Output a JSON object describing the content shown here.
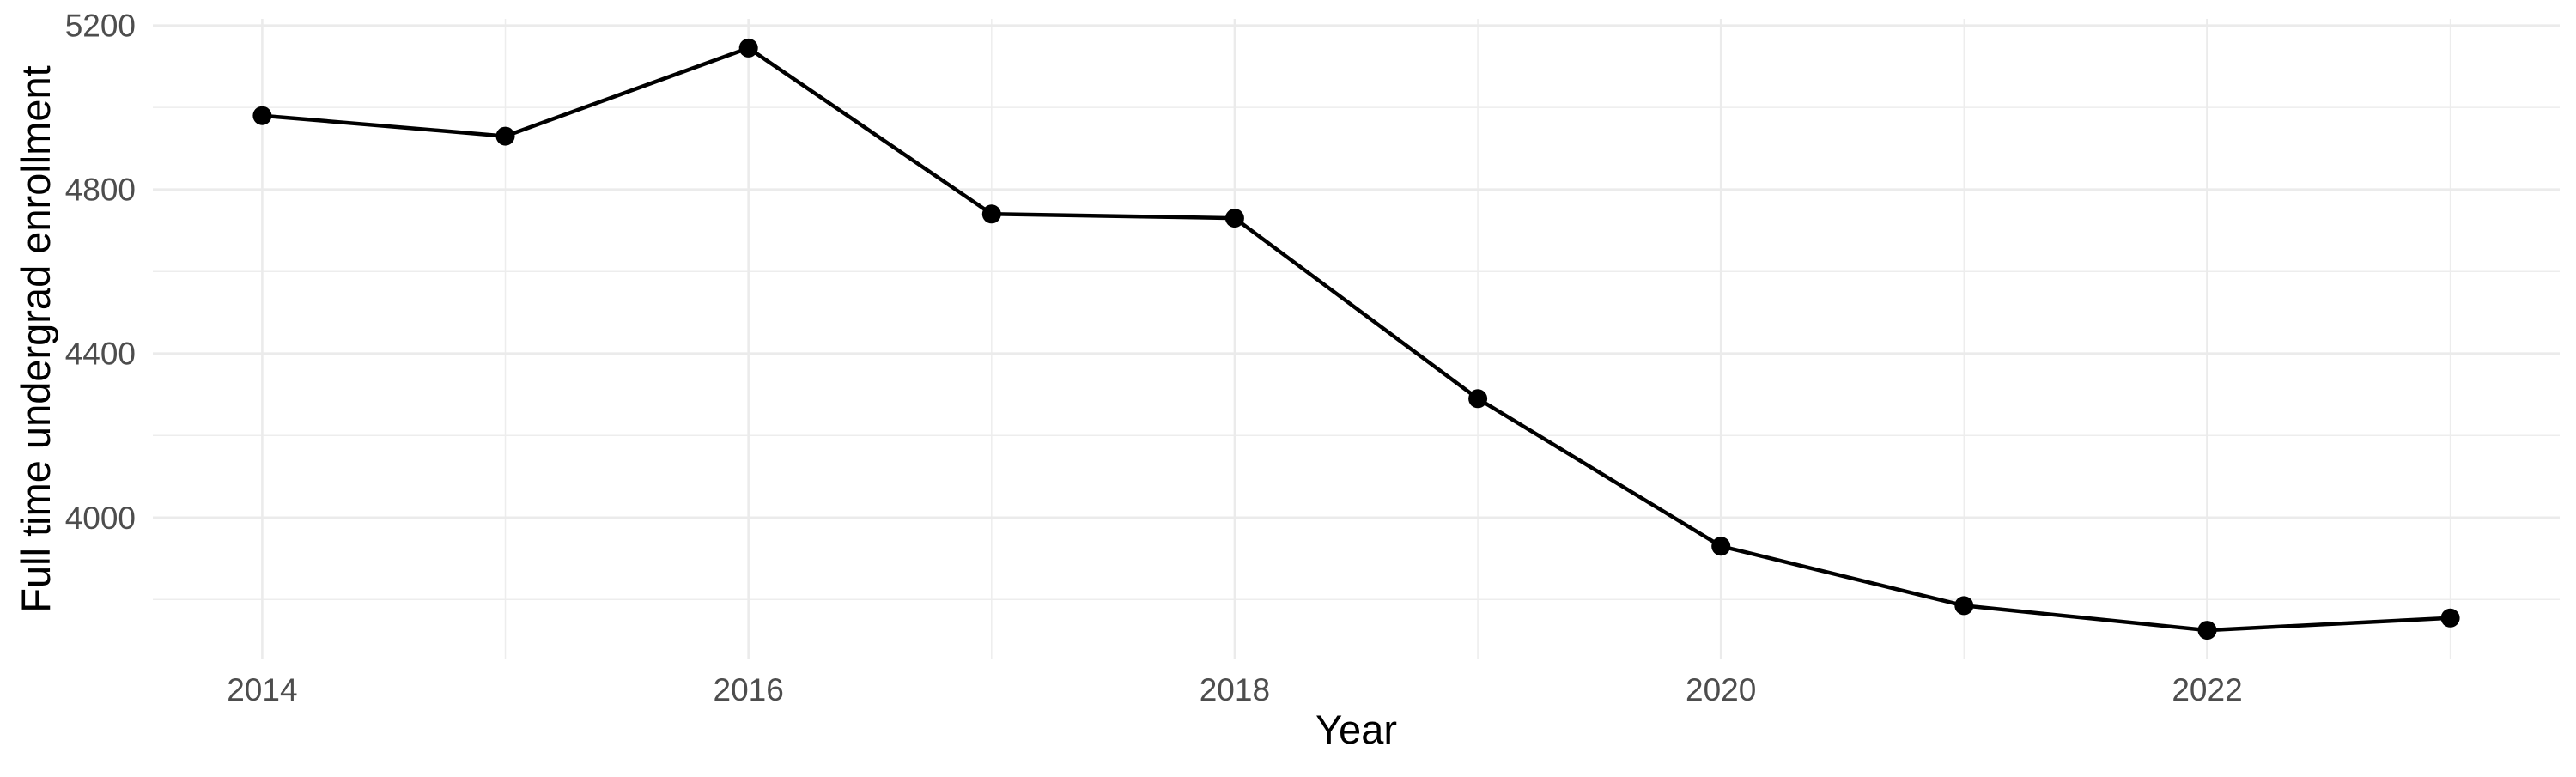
{
  "chart_data": {
    "type": "line",
    "title": "",
    "xlabel": "Year",
    "ylabel": "Full time undergrad enrollment",
    "series": [
      {
        "name": "Full time undergrad enrollment",
        "x": [
          2014,
          2015,
          2016,
          2017,
          2018,
          2019,
          2020,
          2021,
          2022,
          2023
        ],
        "values": [
          4980,
          4930,
          5145,
          4740,
          4730,
          4290,
          3930,
          3785,
          3725,
          3755
        ]
      }
    ],
    "x_tick_labels": [
      "2014",
      "2016",
      "2018",
      "2020",
      "2022"
    ],
    "x_major_breaks": [
      2014,
      2016,
      2018,
      2020,
      2022
    ],
    "x_minor_breaks": [
      2015,
      2017,
      2019,
      2021,
      2023
    ],
    "y_tick_labels": [
      "4000",
      "4400",
      "4800",
      "5200"
    ],
    "y_major_breaks": [
      4000,
      4400,
      4800,
      5200
    ],
    "y_minor_breaks": [
      3800,
      4200,
      4600,
      5000
    ],
    "xlim": [
      2013.55,
      2023.45
    ],
    "ylim": [
      3654,
      5216
    ],
    "grid": "major+minor",
    "legend": "none",
    "marker": "filled-circle",
    "colors": {
      "line": "#000000",
      "point": "#000000",
      "grid_major": "#EBEBEB",
      "grid_minor": "#EDEDED",
      "tick_label": "#4D4D4D",
      "axis_title": "#000000",
      "background": "#FFFFFF"
    }
  }
}
